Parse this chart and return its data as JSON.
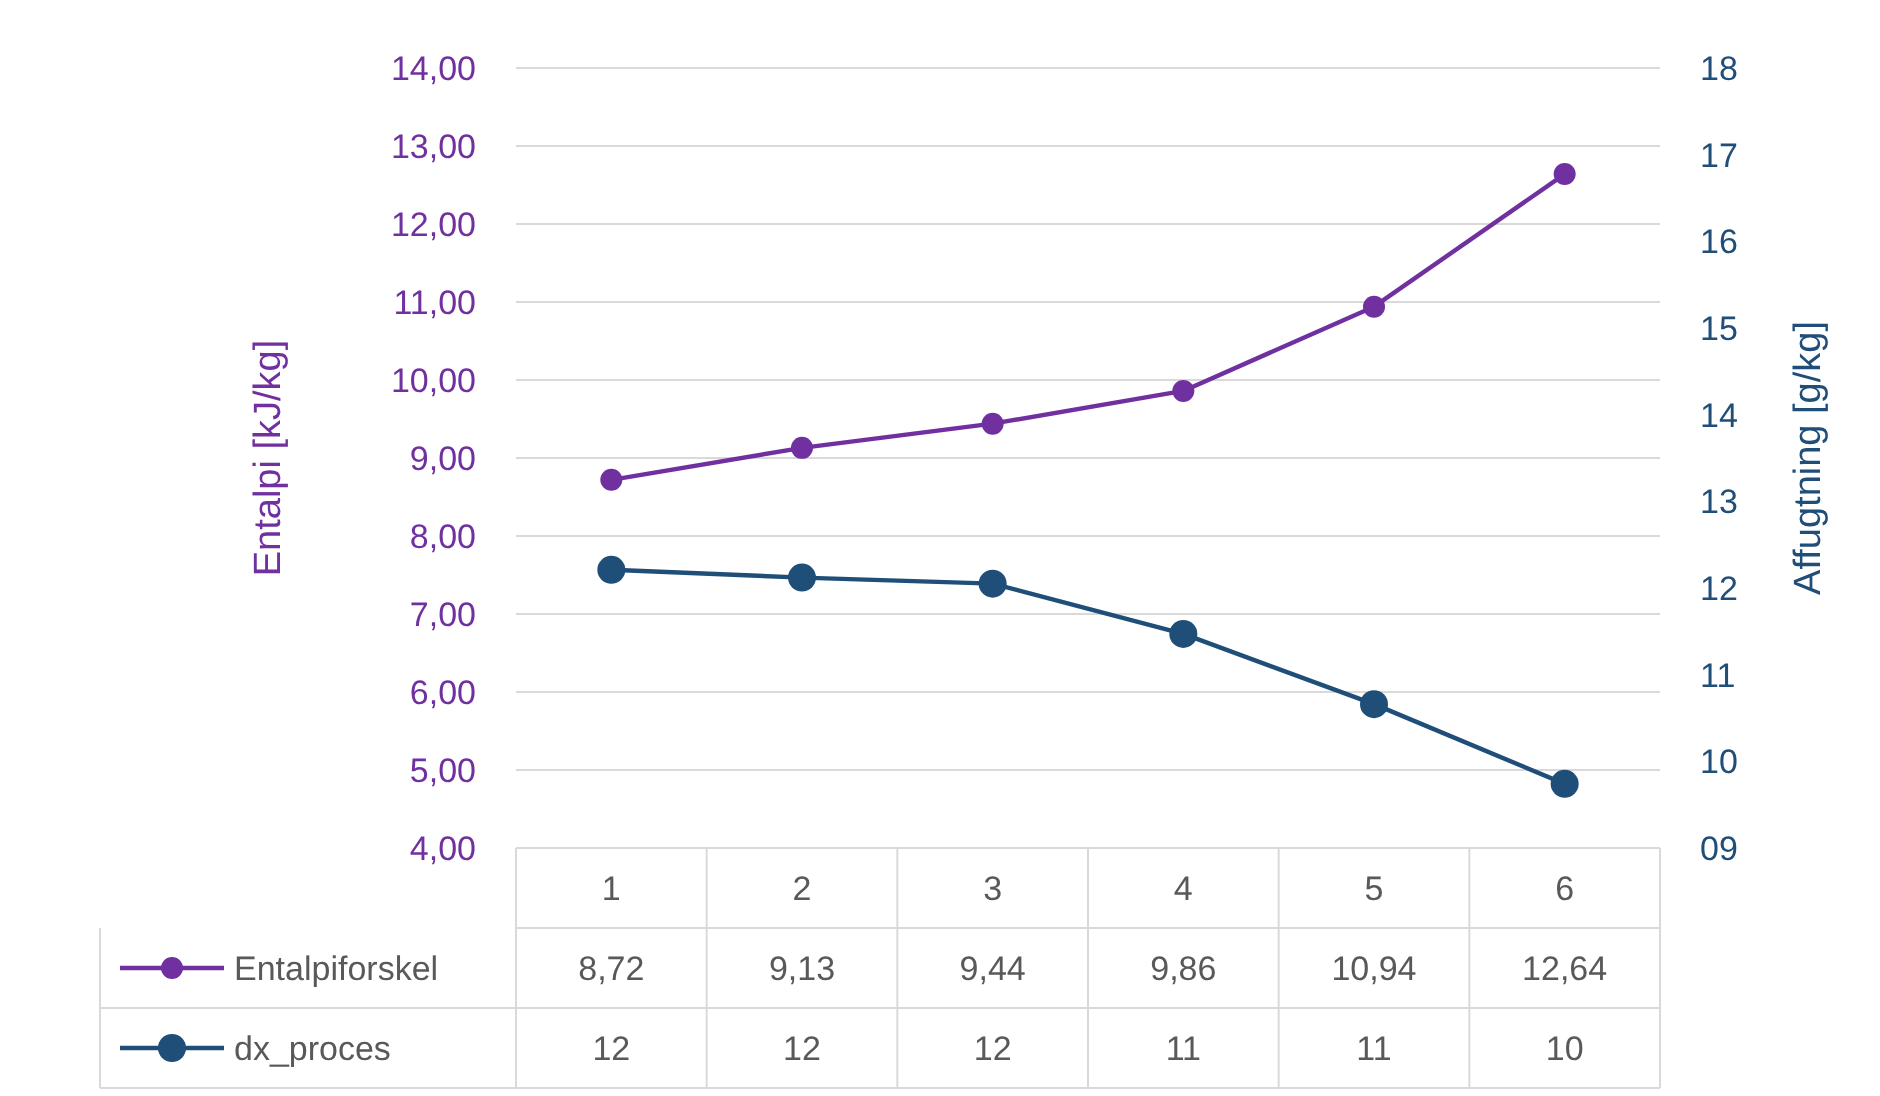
{
  "chart_data": {
    "type": "line",
    "ylabel": "Entalpi [kJ/kg]",
    "y2label": "Affugtning [g/kg]",
    "categories": [
      "1",
      "2",
      "3",
      "4",
      "5",
      "6"
    ],
    "series": [
      {
        "name": "Entalpiforskel",
        "color": "#7030a0",
        "values": [
          8.72,
          9.13,
          9.44,
          9.86,
          10.94,
          12.64
        ],
        "value_labels": [
          "8,72",
          "9,13",
          "9,44",
          "9,86",
          "10,94",
          "12,64"
        ]
      },
      {
        "name": "dx_proces",
        "color": "#1f4e79",
        "axis": "y2",
        "values": [
          12.21,
          12.12,
          12.05,
          11.47,
          10.66,
          9.74
        ],
        "value_labels": [
          "12",
          "12",
          "12",
          "11",
          "11",
          "10"
        ]
      }
    ],
    "ylim": [
      4,
      14
    ],
    "yticks": [
      {
        "value": 4,
        "label": "4,00"
      },
      {
        "value": 5,
        "label": "5,00"
      },
      {
        "value": 6,
        "label": "6,00"
      },
      {
        "value": 7,
        "label": "7,00"
      },
      {
        "value": 8,
        "label": "8,00"
      },
      {
        "value": 9,
        "label": "9,00"
      },
      {
        "value": 10,
        "label": "10,00"
      },
      {
        "value": 11,
        "label": "11,00"
      },
      {
        "value": 12,
        "label": "12,00"
      },
      {
        "value": 13,
        "label": "13,00"
      },
      {
        "value": 14,
        "label": "14,00"
      }
    ],
    "y2lim": [
      9,
      18
    ],
    "y2ticks": [
      {
        "value": 9,
        "label": "09"
      },
      10,
      11,
      12,
      13,
      14,
      15,
      16,
      17,
      18
    ],
    "grid": "y",
    "legend": "bottom",
    "marker": "circle",
    "line_style": "solid"
  }
}
